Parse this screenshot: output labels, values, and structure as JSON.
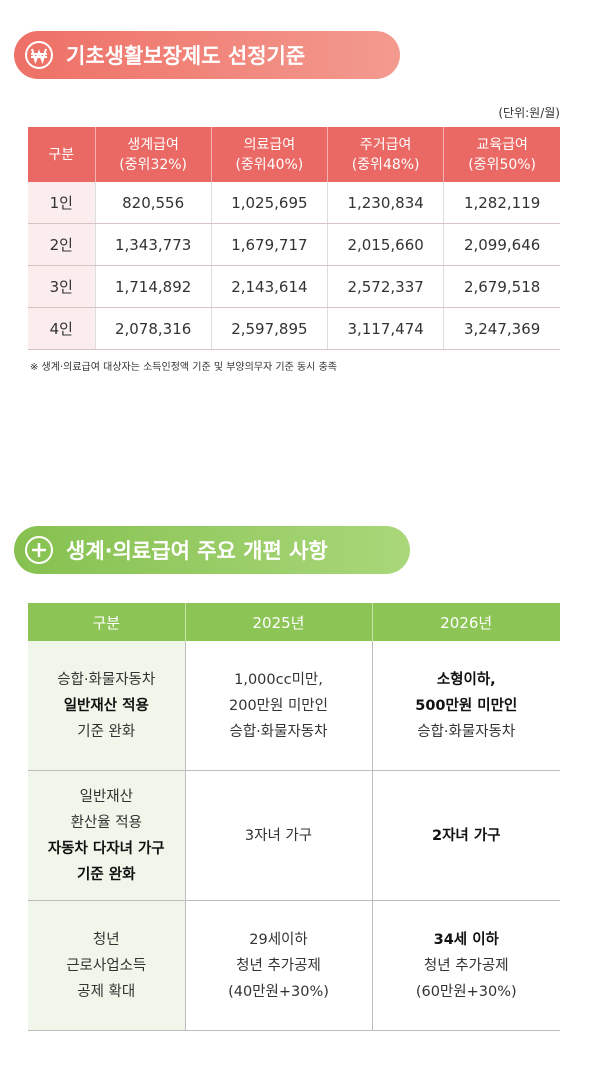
{
  "section1": {
    "title": "기초생활보장제도 선정기준",
    "unit": "(단위:원/월)",
    "table": {
      "header": [
        [
          "구분"
        ],
        [
          "생계급여",
          "(중위32%)"
        ],
        [
          "의료급여",
          "(중위40%)"
        ],
        [
          "주거급여",
          "(중위48%)"
        ],
        [
          "교육급여",
          "(중위50%)"
        ]
      ],
      "rows": [
        [
          "1인",
          "820,556",
          "1,025,695",
          "1,230,834",
          "1,282,119"
        ],
        [
          "2인",
          "1,343,773",
          "1,679,717",
          "2,015,660",
          "2,099,646"
        ],
        [
          "3인",
          "1,714,892",
          "2,143,614",
          "2,572,337",
          "2,679,518"
        ],
        [
          "4인",
          "2,078,316",
          "2,597,895",
          "3,117,474",
          "3,247,369"
        ]
      ]
    },
    "note": "※ 생계·의료급여 대상자는 소득인정액 기준 및 부양의무자 기준 동시 충족"
  },
  "section2": {
    "title": "생계·의료급여 주요 개편 사항",
    "table": {
      "header": [
        "구분",
        "2025년",
        "2026년"
      ],
      "rows": [
        [
          [
            {
              "text": "승합·화물자동차",
              "bold": false
            },
            {
              "text": "일반재산 적용",
              "bold": true
            },
            {
              "text": "기준 완화",
              "bold": false
            }
          ],
          [
            {
              "text": "1,000cc미만,",
              "bold": false
            },
            {
              "text": "200만원 미만인",
              "bold": false
            },
            {
              "text": "승합·화물자동차",
              "bold": false
            }
          ],
          [
            {
              "text": "소형이하,",
              "bold": true
            },
            {
              "text": "500만원 미만인",
              "bold": true
            },
            {
              "text": "승합·화물자동차",
              "bold": false
            }
          ]
        ],
        [
          [
            {
              "text": "일반재산",
              "bold": false
            },
            {
              "text": "환산율 적용",
              "bold": false
            },
            {
              "text": "자동차 다자녀 가구",
              "bold": true
            },
            {
              "text": "기준 완화",
              "bold": true
            }
          ],
          [
            {
              "text": "3자녀 가구",
              "bold": false
            }
          ],
          [
            {
              "text": "2자녀 가구",
              "bold": true
            }
          ]
        ],
        [
          [
            {
              "text": "청년",
              "bold": false
            },
            {
              "text": "근로사업소득",
              "bold": false
            },
            {
              "text": "공제 확대",
              "bold": false
            }
          ],
          [
            {
              "text": "29세이하",
              "bold": false
            },
            {
              "text": "청년 추가공제",
              "bold": false
            },
            {
              "text": "(40만원+30%)",
              "bold": false
            }
          ],
          [
            {
              "text": "34세 이하",
              "bold": true
            },
            {
              "text": "청년 추가공제",
              "bold": false
            },
            {
              "text": "(60만원+30%)",
              "bold": false
            }
          ]
        ]
      ]
    }
  }
}
